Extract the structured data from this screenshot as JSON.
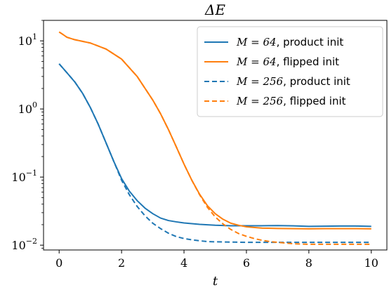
{
  "chart_data": {
    "type": "line",
    "title": "ΔE",
    "xlabel": "t",
    "ylabel": "",
    "xlim": [
      -0.5,
      10.5
    ],
    "ylim": [
      0.0085,
      20
    ],
    "yscale": "log",
    "grid": false,
    "legend_position": "top-right",
    "x_ticks": [
      0,
      2,
      4,
      6,
      8,
      10
    ],
    "x_tick_labels": [
      "0",
      "2",
      "4",
      "6",
      "8",
      "10"
    ],
    "y_ticks": [
      0.01,
      0.1,
      1,
      10
    ],
    "y_tick_labels": [
      {
        "base": "10",
        "exp": "−2"
      },
      {
        "base": "10",
        "exp": "−1"
      },
      {
        "base": "10",
        "exp": "0"
      },
      {
        "base": "10",
        "exp": "1"
      }
    ],
    "series": [
      {
        "name": "M = 64, product init",
        "name_math": "M = 64",
        "name_text": ", product init",
        "color": "#1f77b4",
        "dash": "solid",
        "x": [
          0,
          0.25,
          0.5,
          0.75,
          1,
          1.25,
          1.5,
          1.75,
          2,
          2.25,
          2.5,
          2.75,
          3,
          3.25,
          3.5,
          3.75,
          4,
          4.5,
          5,
          5.5,
          6,
          6.5,
          7,
          7.5,
          8,
          8.5,
          9,
          9.5,
          10
        ],
        "y": [
          4.6,
          3.4,
          2.5,
          1.7,
          1.05,
          0.6,
          0.32,
          0.17,
          0.095,
          0.062,
          0.045,
          0.035,
          0.029,
          0.025,
          0.023,
          0.022,
          0.0212,
          0.0202,
          0.0196,
          0.0193,
          0.0193,
          0.0193,
          0.0194,
          0.0192,
          0.0189,
          0.019,
          0.0191,
          0.0191,
          0.0189
        ]
      },
      {
        "name": "M = 64, flipped init",
        "name_math": "M = 64",
        "name_text": ", flipped init",
        "color": "#ff7f0e",
        "dash": "solid",
        "x": [
          0,
          0.1,
          0.25,
          0.5,
          1,
          1.5,
          2,
          2.5,
          3,
          3.25,
          3.5,
          3.75,
          4,
          4.25,
          4.5,
          4.75,
          5,
          5.25,
          5.5,
          5.75,
          6,
          6.5,
          7,
          7.5,
          8,
          8.5,
          9,
          9.5,
          10
        ],
        "y": [
          13.5,
          12.6,
          11.3,
          10.4,
          9.3,
          7.6,
          5.4,
          3.0,
          1.35,
          0.85,
          0.5,
          0.28,
          0.155,
          0.09,
          0.056,
          0.038,
          0.029,
          0.024,
          0.021,
          0.0196,
          0.0186,
          0.0178,
          0.0176,
          0.0175,
          0.0174,
          0.0175,
          0.0175,
          0.0175,
          0.0174
        ]
      },
      {
        "name": "M = 256, product init",
        "name_math": "M = 256",
        "name_text": ", product init",
        "color": "#1f77b4",
        "dash": "dashed",
        "x": [
          0,
          0.25,
          0.5,
          0.75,
          1,
          1.25,
          1.5,
          1.75,
          2,
          2.25,
          2.5,
          2.75,
          3,
          3.25,
          3.5,
          3.75,
          4,
          4.25,
          4.5,
          4.75,
          5,
          5.5,
          6,
          6.5,
          7,
          8,
          9,
          10
        ],
        "y": [
          4.6,
          3.4,
          2.5,
          1.7,
          1.05,
          0.6,
          0.32,
          0.17,
          0.09,
          0.055,
          0.037,
          0.027,
          0.021,
          0.0175,
          0.015,
          0.0134,
          0.0125,
          0.012,
          0.0116,
          0.0113,
          0.0112,
          0.0111,
          0.011,
          0.011,
          0.011,
          0.011,
          0.011,
          0.011
        ]
      },
      {
        "name": "M = 256, flipped init",
        "name_math": "M = 256",
        "name_text": ", flipped init",
        "color": "#ff7f0e",
        "dash": "dashed",
        "x": [
          0,
          0.1,
          0.25,
          0.5,
          1,
          1.5,
          2,
          2.5,
          3,
          3.25,
          3.5,
          3.75,
          4,
          4.25,
          4.5,
          4.75,
          5,
          5.25,
          5.5,
          5.75,
          6,
          6.25,
          6.5,
          6.75,
          7,
          7.5,
          8,
          9,
          10
        ],
        "y": [
          13.5,
          12.6,
          11.3,
          10.4,
          9.3,
          7.6,
          5.4,
          3.0,
          1.35,
          0.85,
          0.5,
          0.28,
          0.155,
          0.09,
          0.055,
          0.036,
          0.026,
          0.0205,
          0.017,
          0.0148,
          0.0135,
          0.0125,
          0.0118,
          0.0113,
          0.011,
          0.0105,
          0.0103,
          0.0103,
          0.0103
        ]
      }
    ]
  }
}
